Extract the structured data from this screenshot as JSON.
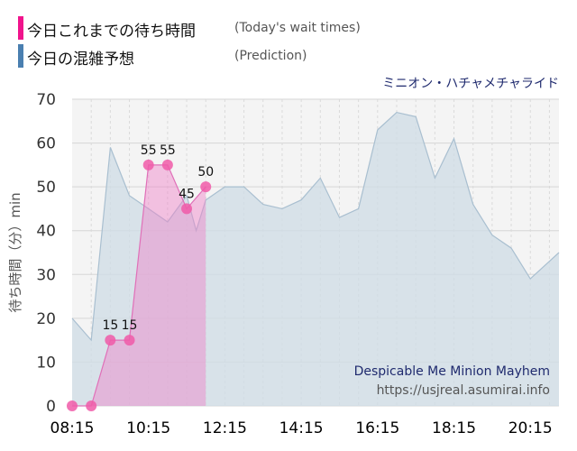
{
  "legend": {
    "today_label": "今日これまでの待ち時間",
    "today_sub": "(Today's wait times)",
    "prediction_label": "今日の混雑予想",
    "prediction_sub": "(Prediction)"
  },
  "attraction": {
    "name_ja": "ミニオン・ハチャメチャライド",
    "name_en": "Despicable Me Minion Mayhem",
    "url": "https://usjreal.asumirai.info"
  },
  "colors": {
    "today": "#f0148c",
    "prediction": "#4a7fb0"
  },
  "chart_data": {
    "type": "area",
    "ylabel": "待ち時間（分）min",
    "ylim": [
      0,
      70
    ],
    "yticks": [
      0,
      10,
      20,
      30,
      40,
      50,
      60,
      70
    ],
    "xlim": [
      "08:15",
      "21:00"
    ],
    "xticks": [
      "08:15",
      "10:15",
      "12:15",
      "14:15",
      "16:15",
      "18:15",
      "20:15"
    ],
    "series": [
      {
        "role": "prediction",
        "x": [
          "08:15",
          "08:45",
          "09:15",
          "09:45",
          "10:15",
          "10:45",
          "11:15",
          "11:30",
          "11:45",
          "12:15",
          "12:45",
          "13:15",
          "13:45",
          "14:15",
          "14:45",
          "15:15",
          "15:45",
          "16:15",
          "16:45",
          "17:15",
          "17:45",
          "18:15",
          "18:45",
          "19:15",
          "19:45",
          "20:15",
          "20:45",
          "21:00"
        ],
        "values": [
          20,
          15,
          59,
          48,
          45,
          42,
          48,
          40,
          47,
          50,
          50,
          46,
          45,
          47,
          52,
          43,
          45,
          63,
          67,
          66,
          52,
          61,
          46,
          39,
          36,
          29,
          33,
          35
        ]
      },
      {
        "role": "today",
        "x": [
          "08:15",
          "08:45",
          "09:15",
          "09:45",
          "10:15",
          "10:45",
          "11:15",
          "11:45"
        ],
        "values": [
          0,
          0,
          15,
          15,
          55,
          55,
          45,
          50
        ],
        "labels": [
          "",
          "",
          "15",
          "15",
          "55",
          "55",
          "45",
          "50"
        ]
      }
    ]
  }
}
